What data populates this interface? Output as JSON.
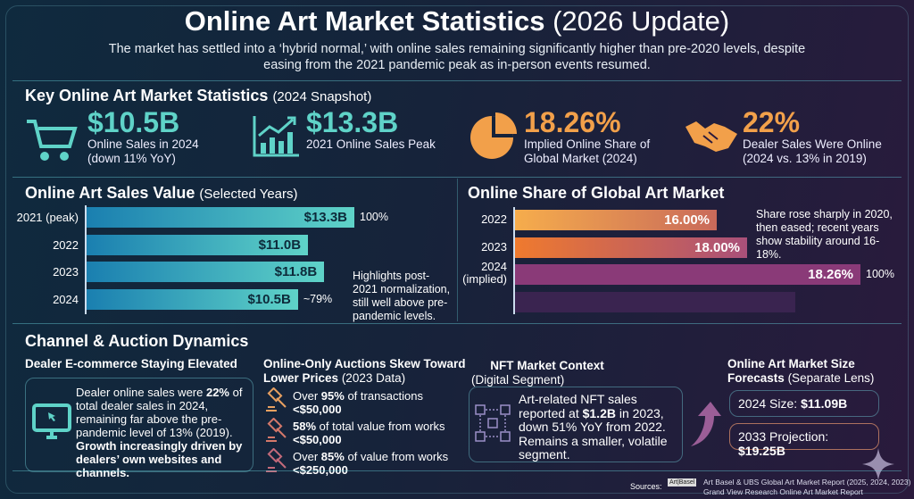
{
  "header": {
    "title": "Online Art Market Statistics",
    "title_suffix": "(2026 Update)",
    "subtitle": "The market has settled into a ‘hybrid normal,’ with online sales remaining significantly higher than pre-2020 levels, despite easing from the 2021 pandemic peak as in-person events resumed."
  },
  "key_stats": {
    "title": "Key Online Art Market Statistics",
    "title_suffix": "(2024 Snapshot)",
    "items": [
      {
        "icon": "shopping-cart-icon",
        "value": "$10.5B",
        "label": "Online Sales in 2024",
        "label2": "(down 11% YoY)"
      },
      {
        "icon": "growth-chart-icon",
        "value": "$13.3B",
        "label": "2021 Online Sales Peak",
        "label2": ""
      },
      {
        "icon": "pie-chart-icon",
        "value": "18.26%",
        "label": "Implied Online Share of",
        "label2": "Global Market (2024)"
      },
      {
        "icon": "handshake-icon",
        "value": "22%",
        "label": "Dealer Sales Were Online",
        "label2": "(2024 vs. 13% in 2019)"
      }
    ]
  },
  "colors": {
    "teal": "#5fd3c8",
    "orange": "#f2a04a",
    "purple": "#8a3a78"
  },
  "chart_data": [
    {
      "type": "bar",
      "orientation": "horizontal",
      "title": "Online Art Sales Value",
      "title_suffix": "(Selected Years)",
      "categories": [
        "2021 (peak)",
        "2022",
        "2023",
        "2024"
      ],
      "values": [
        13.3,
        11.0,
        11.8,
        10.5
      ],
      "labels": [
        "$13.3B",
        "$11.0B",
        "$11.8B",
        "$10.5B"
      ],
      "side_labels": [
        "100%",
        "",
        "",
        "~79%"
      ],
      "annotation": "Highlights post-2021 normalization, still well above pre-pandemic levels."
    },
    {
      "type": "bar",
      "orientation": "horizontal",
      "title": "Online Share of Global Art Market",
      "categories": [
        "2022",
        "2023",
        "2024 (implied)",
        ""
      ],
      "values": [
        16.0,
        18.0,
        18.26,
        null
      ],
      "labels": [
        "16.00%",
        "18.00%",
        "18.26%",
        ""
      ],
      "side_labels": [
        "",
        "",
        "100%",
        ""
      ],
      "annotation": "Share rose sharply in 2020, then eased; recent years show stability around 16-18%."
    }
  ],
  "channel": {
    "title": "Channel & Auction Dynamics",
    "dealer": {
      "title": "Dealer E-commerce Staying Elevated",
      "t1": "Dealer online sales were ",
      "b1": "22%",
      "t2": " of total dealer sales in 2024, remaining far above the pre-pandemic level of 13% (2019). ",
      "b2": "Growth increasingly driven by dealers’ own websites and channels."
    },
    "auctions": {
      "title": "Online-Only Auctions Skew Toward Lower Prices",
      "title_suffix": "(2023 Data)",
      "items": [
        {
          "pre": "Over ",
          "bold": "95%",
          "mid": " of transactions ",
          "bold2": "<$50,000"
        },
        {
          "pre": "",
          "bold": "58%",
          "mid": " of total value from works ",
          "bold2": "<$50,000"
        },
        {
          "pre": "Over ",
          "bold": "85%",
          "mid": " of value from works ",
          "bold2": "<$250,000"
        }
      ]
    },
    "nft": {
      "title": "NFT Market Context",
      "title_suffix": "(Digital Segment)",
      "t1": "Art-related NFT sales reported at ",
      "b1": "$1.2B",
      "t2": " in 2023, down 51% YoY from 2022. Remains a smaller, volatile segment."
    },
    "forecast": {
      "title": "Online Art Market Size",
      "title2": "Forecasts",
      "title_suffix": "(Separate Lens)",
      "items": [
        {
          "label": "2024 Size: ",
          "value": "$11.09B"
        },
        {
          "label": "2033 Projection: ",
          "value": "$19.25B"
        }
      ]
    }
  },
  "sources": {
    "label": "Sources:",
    "lines": [
      "Art Basel & UBS Global Art Market Report (2025, 2024, 2023)",
      "Grand View Research Online Art Market Report"
    ],
    "logo": "Art Basel"
  }
}
